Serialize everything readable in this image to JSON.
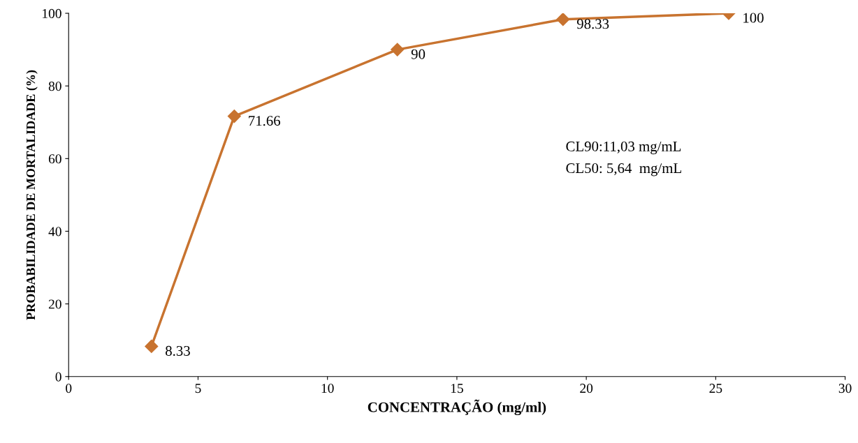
{
  "chart_data": {
    "type": "line",
    "xlabel": "CONCENTRAÇÃO (mg/ml)",
    "ylabel": "PROBABILIDADE DE MORTALIDADE (%)",
    "x": [
      3.2,
      6.4,
      12.7,
      19.1,
      25.5
    ],
    "series": [
      {
        "color": "#c8732f",
        "values": [
          8.33,
          71.66,
          90,
          98.33,
          100
        ]
      }
    ],
    "data_labels": true,
    "marker": "diamond",
    "line_style": "solid",
    "grid": false,
    "legend": false,
    "xlim": [
      0,
      30
    ],
    "xticks": [
      0,
      5,
      10,
      15,
      20,
      25,
      30
    ],
    "ylim": [
      0,
      100
    ],
    "yticks": [
      0,
      20,
      40,
      60,
      80,
      100
    ],
    "annotations": [
      "CL90:11,03 mg/mL",
      "CL50: 5,64  mg/mL"
    ]
  }
}
